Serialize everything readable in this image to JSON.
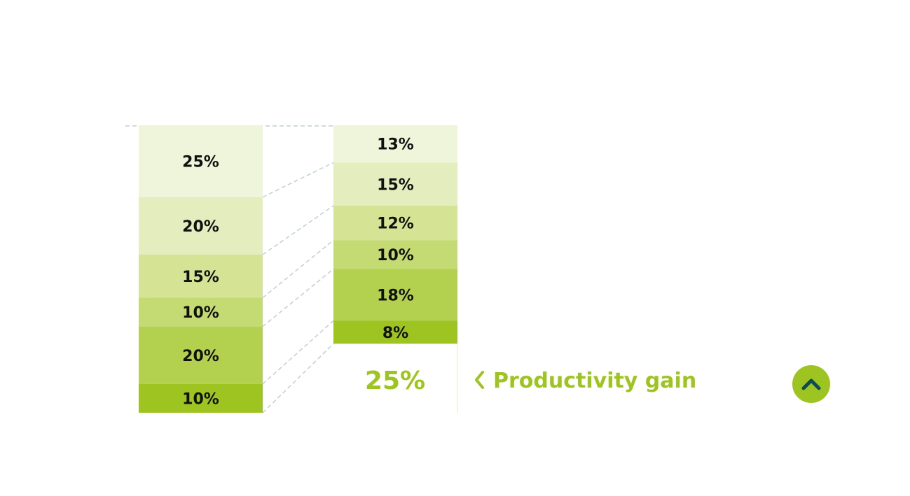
{
  "chart_data": {
    "type": "stacked-bar",
    "bars": [
      {
        "segments": [
          {
            "value": 25,
            "label": "25%"
          },
          {
            "value": 20,
            "label": "20%"
          },
          {
            "value": 15,
            "label": "15%"
          },
          {
            "value": 10,
            "label": "10%"
          },
          {
            "value": 20,
            "label": "20%"
          },
          {
            "value": 10,
            "label": "10%"
          }
        ]
      },
      {
        "segments": [
          {
            "value": 13,
            "label": "13%"
          },
          {
            "value": 15,
            "label": "15%"
          },
          {
            "value": 12,
            "label": "12%"
          },
          {
            "value": 10,
            "label": "10%"
          },
          {
            "value": 18,
            "label": "18%"
          },
          {
            "value": 8,
            "label": "8%"
          }
        ],
        "remainder": {
          "value": 25,
          "label": "25%"
        }
      }
    ],
    "segment_colors": [
      "#eff5da",
      "#e3edbe",
      "#d4e394",
      "#c4da72",
      "#b4d04f",
      "#9ec421"
    ],
    "annotation": "Productivity gain",
    "accent_color": "#9ec421",
    "connector_color": "#c2cfcf"
  },
  "controls": {
    "scroll_up_icon": "chevron-up-icon",
    "button_color": "#9ec421",
    "icon_color": "#0e4a52"
  }
}
